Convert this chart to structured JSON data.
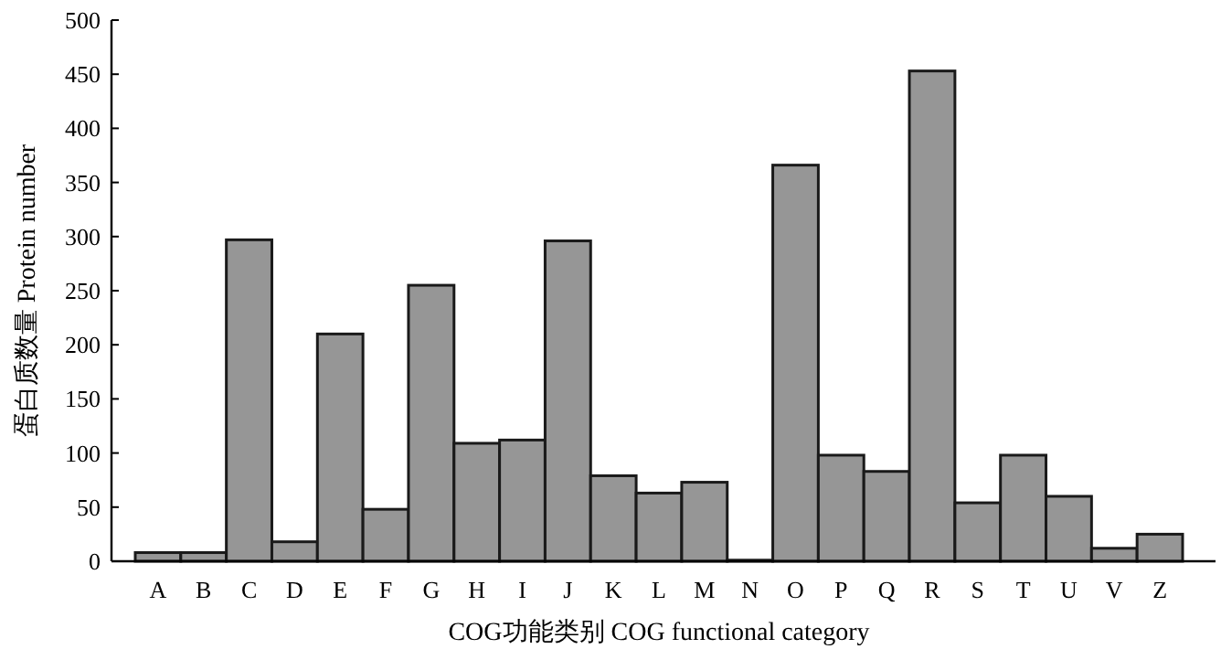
{
  "chart_data": {
    "type": "bar",
    "xlabel": "COG功能类别 COG functional category",
    "ylabel": "蛋白质数量 Protein number",
    "categories": [
      "A",
      "B",
      "C",
      "D",
      "E",
      "F",
      "G",
      "H",
      "I",
      "J",
      "K",
      "L",
      "M",
      "N",
      "O",
      "P",
      "Q",
      "R",
      "S",
      "T",
      "U",
      "V",
      "Z"
    ],
    "values": [
      8,
      8,
      297,
      18,
      210,
      48,
      255,
      109,
      112,
      296,
      79,
      63,
      73,
      1,
      366,
      98,
      83,
      453,
      54,
      98,
      60,
      12,
      25
    ],
    "color": "#969696",
    "ylim": [
      0,
      500
    ],
    "yticks": [
      0,
      50,
      100,
      150,
      200,
      250,
      300,
      350,
      400,
      450,
      500
    ],
    "grid": false
  }
}
